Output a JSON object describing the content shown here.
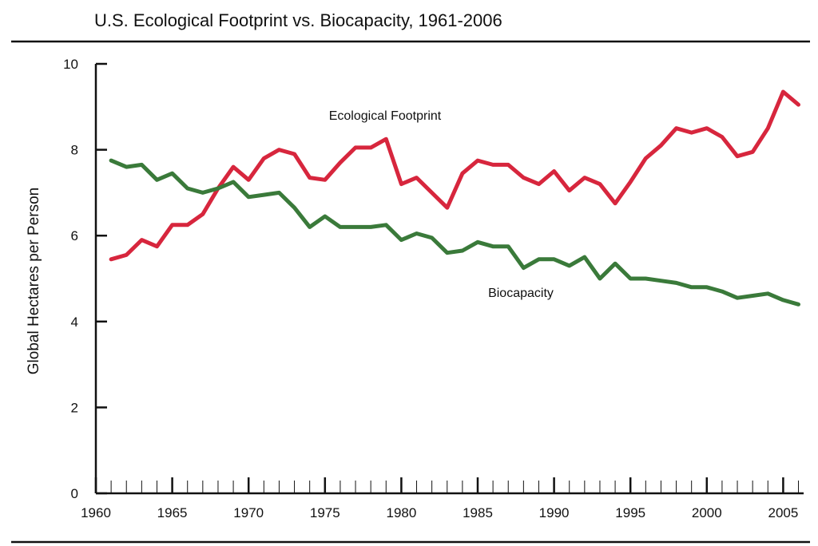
{
  "chart_data": {
    "type": "line",
    "title": "U.S. Ecological Footprint vs. Biocapacity, 1961-2006",
    "xlabel": "",
    "ylabel": "Global Hectares per Person",
    "xlim": [
      1960,
      2006.5
    ],
    "ylim": [
      0,
      10
    ],
    "x_ticks": [
      1960,
      1965,
      1970,
      1975,
      1980,
      1985,
      1990,
      1995,
      2000,
      2005
    ],
    "x_tick_labels": [
      "1960",
      "1965",
      "1970",
      "1975",
      "1980",
      "1985",
      "1990",
      "1995",
      "2000",
      "2005"
    ],
    "y_ticks": [
      0,
      2,
      4,
      6,
      8,
      10
    ],
    "y_tick_labels": [
      "0",
      "2",
      "4",
      "6",
      "8",
      "10"
    ],
    "grid": false,
    "x": [
      1961,
      1962,
      1963,
      1964,
      1965,
      1966,
      1967,
      1968,
      1969,
      1970,
      1971,
      1972,
      1973,
      1974,
      1975,
      1976,
      1977,
      1978,
      1979,
      1980,
      1981,
      1982,
      1983,
      1984,
      1985,
      1986,
      1987,
      1988,
      1989,
      1990,
      1991,
      1992,
      1993,
      1994,
      1995,
      1996,
      1997,
      1998,
      1999,
      2000,
      2001,
      2002,
      2003,
      2004,
      2005,
      2006
    ],
    "series": [
      {
        "name": "Ecological Footprint",
        "color": "#d7263d",
        "values": [
          5.45,
          5.55,
          5.9,
          5.75,
          6.25,
          6.25,
          6.5,
          7.1,
          7.6,
          7.3,
          7.8,
          8.0,
          7.9,
          7.35,
          7.3,
          7.7,
          8.05,
          8.05,
          8.25,
          7.2,
          7.35,
          7.0,
          6.65,
          7.45,
          7.75,
          7.65,
          7.65,
          7.35,
          7.2,
          7.5,
          7.05,
          7.35,
          7.2,
          6.75,
          7.25,
          7.8,
          8.1,
          8.5,
          8.4,
          8.5,
          8.3,
          7.85,
          7.95,
          8.5,
          9.35,
          9.05
        ]
      },
      {
        "name": "Biocapacity",
        "color": "#3a7a3a",
        "values": [
          7.75,
          7.6,
          7.65,
          7.3,
          7.45,
          7.1,
          7.0,
          7.1,
          7.25,
          6.9,
          6.95,
          7.0,
          6.65,
          6.2,
          6.45,
          6.2,
          6.2,
          6.2,
          6.25,
          5.9,
          6.05,
          5.95,
          5.6,
          5.65,
          5.85,
          5.75,
          5.75,
          5.25,
          5.45,
          5.45,
          5.3,
          5.5,
          5.0,
          5.35,
          5.0,
          5.0,
          4.95,
          4.9,
          4.8,
          4.8,
          4.7,
          4.55,
          4.6,
          4.65,
          4.5,
          4.4
        ]
      }
    ]
  }
}
